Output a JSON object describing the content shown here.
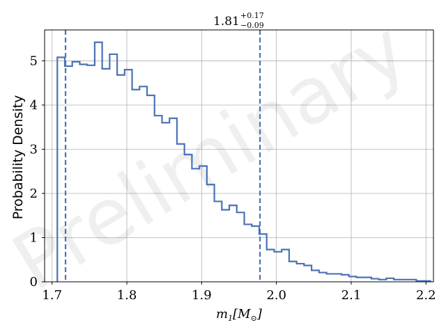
{
  "chart_data": {
    "type": "histogram",
    "title_main": "1.81",
    "title_upper": "+0.17",
    "title_lower": "−0.09",
    "ylabel": "Probability Density",
    "xlabel_main": "m",
    "xlabel_sub": "1",
    "xlabel_bracket": "[M",
    "xlabel_sun": "⊙",
    "xlabel_close": "]",
    "watermark": "Preliminary",
    "xlim": [
      1.69,
      2.21
    ],
    "ylim": [
      0,
      5.7
    ],
    "xticks": [
      1.7,
      1.8,
      1.9,
      2.0,
      2.1,
      2.2
    ],
    "xtick_labels": [
      "1.7",
      "1.8",
      "1.9",
      "2.0",
      "2.1",
      "2.2"
    ],
    "yticks": [
      0,
      1,
      2,
      3,
      4,
      5
    ],
    "ytick_labels": [
      "0",
      "1",
      "2",
      "3",
      "4",
      "5"
    ],
    "grid": true,
    "color": "#4a72b8",
    "bin_width": 0.01,
    "bin_start": 1.707,
    "values": [
      5.08,
      4.88,
      4.98,
      4.92,
      4.9,
      5.42,
      4.82,
      5.15,
      4.68,
      4.8,
      4.35,
      4.42,
      4.22,
      3.76,
      3.6,
      3.7,
      3.12,
      2.88,
      2.56,
      2.62,
      2.2,
      1.82,
      1.63,
      1.73,
      1.57,
      1.3,
      1.26,
      1.08,
      0.73,
      0.68,
      0.73,
      0.46,
      0.41,
      0.37,
      0.26,
      0.21,
      0.18,
      0.18,
      0.16,
      0.12,
      0.1,
      0.1,
      0.07,
      0.05,
      0.08,
      0.05,
      0.05,
      0.05,
      0.02,
      0.02
    ],
    "vlines": [
      1.718,
      1.978
    ]
  }
}
